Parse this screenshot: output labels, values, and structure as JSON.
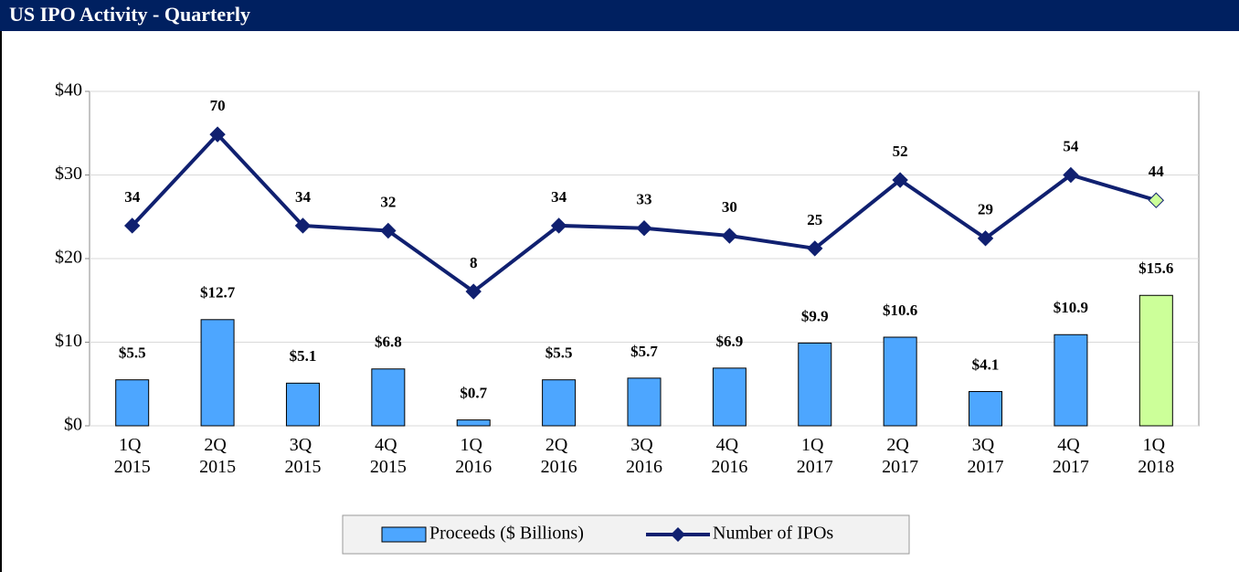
{
  "chart_data": {
    "type": "bar-line",
    "title": "US IPO Activity - Quarterly",
    "categories": [
      "1Q 2015",
      "2Q 2015",
      "3Q 2015",
      "4Q 2015",
      "1Q 2016",
      "2Q 2016",
      "3Q 2016",
      "4Q 2016",
      "1Q 2017",
      "2Q 2017",
      "3Q 2017",
      "4Q 2017",
      "1Q 2018"
    ],
    "series": [
      {
        "name": "Proceeds ($ Billions)",
        "type": "bar",
        "color": "#4da6ff",
        "colors": [
          "#4da6ff",
          "#4da6ff",
          "#4da6ff",
          "#4da6ff",
          "#4da6ff",
          "#4da6ff",
          "#4da6ff",
          "#4da6ff",
          "#4da6ff",
          "#4da6ff",
          "#4da6ff",
          "#4da6ff",
          "#ccff99"
        ],
        "values": [
          5.5,
          12.7,
          5.1,
          6.8,
          0.7,
          5.5,
          5.7,
          6.9,
          9.9,
          10.6,
          4.1,
          10.9,
          15.6
        ],
        "value_labels": [
          "$5.5",
          "$12.7",
          "$5.1",
          "$6.8",
          "$0.7",
          "$5.5",
          "$5.7",
          "$6.9",
          "$9.9",
          "$10.6",
          "$4.1",
          "$10.9",
          "$15.6"
        ]
      },
      {
        "name": "Number of IPOs",
        "type": "line",
        "axis": "y2",
        "color": "#102070",
        "colors": [
          "#102070",
          "#102070",
          "#102070",
          "#102070",
          "#102070",
          "#102070",
          "#102070",
          "#102070",
          "#102070",
          "#102070",
          "#102070",
          "#102070",
          "#ccff99"
        ],
        "values": [
          34,
          70,
          34,
          32,
          8,
          34,
          33,
          30,
          25,
          52,
          29,
          54,
          44
        ]
      }
    ],
    "ylim": [
      0,
      40
    ],
    "yticks": [
      {
        "value": 0,
        "label": "$0"
      },
      {
        "value": 10,
        "label": "$10"
      },
      {
        "value": 20,
        "label": "$20"
      },
      {
        "value": 30,
        "label": "$30"
      },
      {
        "value": 40,
        "label": "$40"
      }
    ],
    "y2lim": [
      -45,
      87
    ],
    "grid": true,
    "legend": "bottom"
  }
}
